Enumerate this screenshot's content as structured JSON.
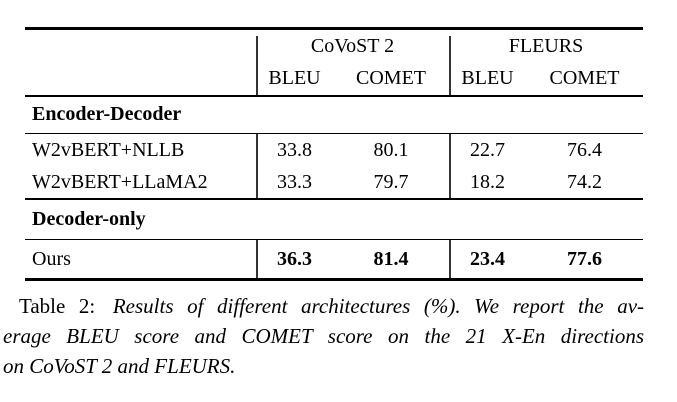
{
  "table": {
    "col_groups": [
      {
        "label": "CoVoST 2",
        "metrics": [
          "BLEU",
          "COMET"
        ]
      },
      {
        "label": "FLEURS",
        "metrics": [
          "BLEU",
          "COMET"
        ]
      }
    ],
    "sections": [
      {
        "heading": "Encoder-Decoder",
        "rows": [
          {
            "label": "W2vBERT+NLLB",
            "values": [
              "33.8",
              "80.1",
              "22.7",
              "76.4"
            ]
          },
          {
            "label": "W2vBERT+LLaMA2",
            "values": [
              "33.3",
              "79.7",
              "18.2",
              "74.2"
            ]
          }
        ]
      },
      {
        "heading": "Decoder-only",
        "rows": [
          {
            "label": "Ours",
            "values": [
              "36.3",
              "81.4",
              "23.4",
              "77.6"
            ]
          }
        ]
      }
    ]
  },
  "caption": {
    "label": "Table 2:",
    "line1_rest": "Results of different architectures (%). We report the av-",
    "line2": "erage BLEU score and COMET score on the 21 X-En directions",
    "line3": "on CoVoST 2 and FLEURS."
  },
  "colors": {
    "text": "#000000",
    "background": "#ffffff",
    "rule": "#000000"
  }
}
